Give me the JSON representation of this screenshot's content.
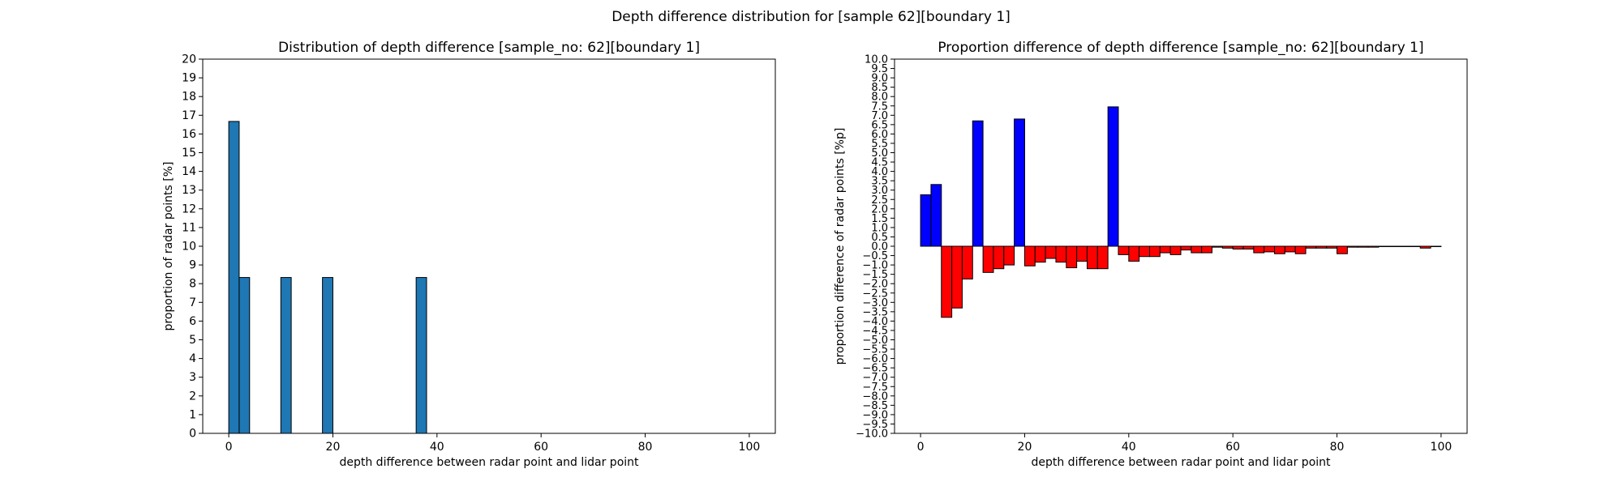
{
  "figure": {
    "suptitle": "Depth difference distribution for [sample 62][boundary 1]"
  },
  "chart_data": [
    {
      "type": "bar",
      "title": "Distribution of depth difference [sample_no: 62][boundary 1]",
      "xlabel": "depth difference between radar point and lidar point",
      "ylabel": "proportion of radar points [%]",
      "xlim": [
        -5,
        105
      ],
      "ylim": [
        0,
        20
      ],
      "xticks": [
        0,
        20,
        40,
        60,
        80,
        100
      ],
      "yticks": [
        0,
        1,
        2,
        3,
        4,
        5,
        6,
        7,
        8,
        9,
        10,
        11,
        12,
        13,
        14,
        15,
        16,
        17,
        18,
        19,
        20
      ],
      "bin_width": 2,
      "bar_color": "#1f77b4",
      "edge_color": "#000000",
      "bins_start": [
        0,
        2,
        10,
        18,
        36
      ],
      "values": [
        16.67,
        8.33,
        8.33,
        8.33,
        8.33
      ]
    },
    {
      "type": "bar",
      "title": "Proportion difference of depth difference [sample_no: 62][boundary 1]",
      "xlabel": "depth difference between radar point and lidar point",
      "ylabel": "proportion difference of radar points [%p]",
      "xlim": [
        -5,
        105
      ],
      "ylim": [
        -10,
        10
      ],
      "xticks": [
        0,
        20,
        40,
        60,
        80,
        100
      ],
      "yticks": [
        -10.0,
        -9.5,
        -9.0,
        -8.5,
        -8.0,
        -7.5,
        -7.0,
        -6.5,
        -6.0,
        -5.5,
        -5.0,
        -4.5,
        -4.0,
        -3.5,
        -3.0,
        -2.5,
        -2.0,
        -1.5,
        -1.0,
        -0.5,
        0.0,
        0.5,
        1.0,
        1.5,
        2.0,
        2.5,
        3.0,
        3.5,
        4.0,
        4.5,
        5.0,
        5.5,
        6.0,
        6.5,
        7.0,
        7.5,
        8.0,
        8.5,
        9.0,
        9.5,
        10.0
      ],
      "bin_width": 2,
      "positive_color": "#0000ff",
      "negative_color": "#ff0000",
      "edge_color": "#000000",
      "bins_start": [
        0,
        2,
        4,
        6,
        8,
        10,
        12,
        14,
        16,
        18,
        20,
        22,
        24,
        26,
        28,
        30,
        32,
        34,
        36,
        38,
        40,
        42,
        44,
        46,
        48,
        50,
        52,
        54,
        56,
        58,
        60,
        62,
        64,
        66,
        68,
        70,
        72,
        74,
        76,
        78,
        80,
        82,
        84,
        86,
        88,
        90,
        92,
        94,
        96,
        98
      ],
      "values": [
        2.75,
        3.3,
        -3.8,
        -3.3,
        -1.75,
        6.7,
        -1.4,
        -1.2,
        -1.0,
        6.8,
        -1.05,
        -0.85,
        -0.65,
        -0.85,
        -1.15,
        -0.8,
        -1.2,
        -1.2,
        7.45,
        -0.45,
        -0.8,
        -0.55,
        -0.55,
        -0.35,
        -0.45,
        -0.2,
        -0.35,
        -0.35,
        -0.05,
        -0.1,
        -0.15,
        -0.15,
        -0.35,
        -0.3,
        -0.4,
        -0.3,
        -0.4,
        -0.1,
        -0.1,
        -0.1,
        -0.4,
        -0.05,
        -0.05,
        -0.05,
        -0.02,
        -0.02,
        -0.02,
        -0.02,
        -0.1,
        -0.02
      ]
    }
  ]
}
